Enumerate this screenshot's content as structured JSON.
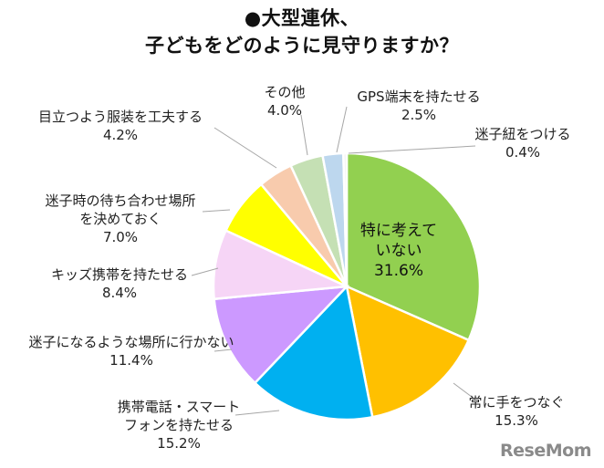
{
  "chart_data": {
    "type": "pie",
    "title_line1": "●大型連休、",
    "title_line2": "子どもをどのように見守りますか？",
    "slices": [
      {
        "label_lines": [
          "特に考えて",
          "いない"
        ],
        "value": 31.6,
        "value_text": "31.6%",
        "color": "#92d050",
        "label_inside": true
      },
      {
        "label_lines": [
          "常に手をつなぐ"
        ],
        "value": 15.3,
        "value_text": "15.3%",
        "color": "#ffc000",
        "label_inside": false
      },
      {
        "label_lines": [
          "携帯電話・スマート",
          "フォンを持たせる"
        ],
        "value": 15.2,
        "value_text": "15.2%",
        "color": "#00b0f0",
        "label_inside": false
      },
      {
        "label_lines": [
          "迷子になるような場所に行かない"
        ],
        "value": 11.4,
        "value_text": "11.4%",
        "color": "#cc99ff",
        "label_inside": false
      },
      {
        "label_lines": [
          "キッズ携帯を持たせる"
        ],
        "value": 8.4,
        "value_text": "8.4%",
        "color": "#f6d5f6",
        "label_inside": false
      },
      {
        "label_lines": [
          "迷子時の待ち合わせ場所",
          "を決めておく"
        ],
        "value": 7.0,
        "value_text": "7.0%",
        "color": "#ffff00",
        "label_inside": false
      },
      {
        "label_lines": [
          "目立つよう服装を工夫する"
        ],
        "value": 4.2,
        "value_text": "4.2%",
        "color": "#f8cbad",
        "label_inside": false
      },
      {
        "label_lines": [
          "その他"
        ],
        "value": 4.0,
        "value_text": "4.0%",
        "color": "#c5e0b4",
        "label_inside": false
      },
      {
        "label_lines": [
          "GPS端末を持たせる"
        ],
        "value": 2.5,
        "value_text": "2.5%",
        "color": "#bdd7ee",
        "label_inside": false
      },
      {
        "label_lines": [
          "迷子紐をつける"
        ],
        "value": 0.4,
        "value_text": "0.4%",
        "color": "#f2f2f2",
        "label_inside": false
      }
    ]
  },
  "watermark": "ReseMom"
}
